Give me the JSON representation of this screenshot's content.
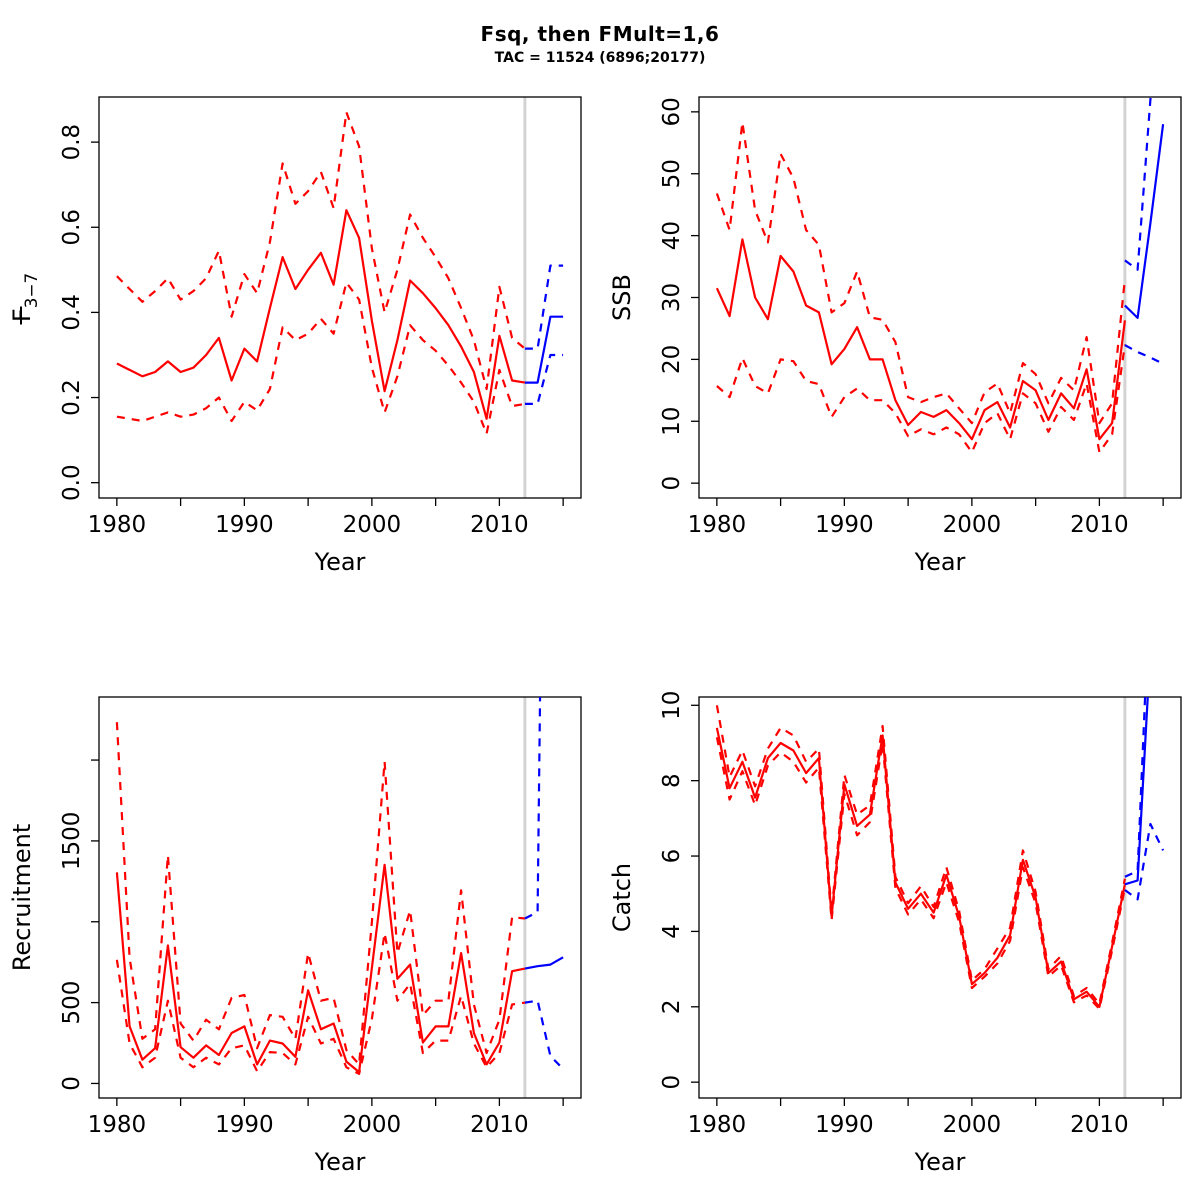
{
  "header": {
    "title": "Fsq, then FMult=1,6",
    "subtitle": "TAC = 11524 (6896;20177)"
  },
  "colors": {
    "hist": "#ff0000",
    "projection": "#0000ff",
    "divider": "#d3d3d3",
    "axis": "#000000"
  },
  "chart_data": [
    {
      "type": "line",
      "id": "fbar",
      "ylab": {
        "base": "F",
        "sub": "3−7",
        "overbar": true
      },
      "xlab": "Year",
      "usr": {
        "x": [
          1978.6,
          2016.4
        ],
        "y": [
          -0.036,
          0.906
        ]
      },
      "divider_x": 2012,
      "xticks": [
        {
          "v": 1980,
          "label": "1980"
        },
        {
          "v": 1985,
          "label": ""
        },
        {
          "v": 1990,
          "label": "1990"
        },
        {
          "v": 1995,
          "label": ""
        },
        {
          "v": 2000,
          "label": "2000"
        },
        {
          "v": 2005,
          "label": ""
        },
        {
          "v": 2010,
          "label": "2010"
        },
        {
          "v": 2015,
          "label": ""
        }
      ],
      "yticks": [
        {
          "v": 0,
          "label": "0.0"
        },
        {
          "v": 0.2,
          "label": "0.2"
        },
        {
          "v": 0.4,
          "label": "0.4"
        },
        {
          "v": 0.6,
          "label": "0.6"
        },
        {
          "v": 0.8,
          "label": "0.8"
        }
      ],
      "hist_years": [
        1980,
        1981,
        1982,
        1983,
        1984,
        1985,
        1986,
        1987,
        1988,
        1989,
        1990,
        1991,
        1992,
        1993,
        1994,
        1995,
        1996,
        1997,
        1998,
        1999,
        2000,
        2001,
        2002,
        2003,
        2004,
        2005,
        2006,
        2007,
        2008,
        2009,
        2010,
        2011,
        2012
      ],
      "median": [
        0.28,
        0.265,
        0.25,
        0.26,
        0.285,
        0.26,
        0.27,
        0.3,
        0.34,
        0.24,
        0.315,
        0.285,
        0.41,
        0.53,
        0.455,
        0.5,
        0.54,
        0.465,
        0.64,
        0.575,
        0.38,
        0.215,
        0.335,
        0.475,
        0.445,
        0.41,
        0.37,
        0.32,
        0.26,
        0.15,
        0.345,
        0.24,
        0.235
      ],
      "upper": [
        0.485,
        0.455,
        0.425,
        0.45,
        0.48,
        0.43,
        0.45,
        0.48,
        0.545,
        0.39,
        0.49,
        0.445,
        0.565,
        0.75,
        0.655,
        0.685,
        0.73,
        0.645,
        0.87,
        0.79,
        0.55,
        0.4,
        0.5,
        0.63,
        0.575,
        0.53,
        0.48,
        0.41,
        0.335,
        0.22,
        0.46,
        0.34,
        0.315
      ],
      "lower": [
        0.155,
        0.15,
        0.145,
        0.155,
        0.165,
        0.155,
        0.16,
        0.175,
        0.2,
        0.145,
        0.19,
        0.17,
        0.22,
        0.365,
        0.335,
        0.35,
        0.385,
        0.35,
        0.47,
        0.43,
        0.27,
        0.165,
        0.25,
        0.37,
        0.335,
        0.31,
        0.275,
        0.235,
        0.19,
        0.115,
        0.265,
        0.18,
        0.185
      ],
      "proj_years": [
        2012,
        2013,
        2014,
        2015
      ],
      "proj_median": [
        0.235,
        0.235,
        0.39,
        0.39
      ],
      "proj_upper": [
        0.315,
        0.315,
        0.51,
        0.51
      ],
      "proj_lower": [
        0.185,
        0.185,
        0.3,
        0.3
      ]
    },
    {
      "type": "line",
      "id": "ssb",
      "ylab": {
        "base": "SSB",
        "sub": "",
        "overbar": false
      },
      "xlab": "Year",
      "usr": {
        "x": [
          1978.6,
          2016.4
        ],
        "y": [
          -2.4,
          62.4
        ]
      },
      "divider_x": 2012,
      "xticks": [
        {
          "v": 1980,
          "label": "1980"
        },
        {
          "v": 1985,
          "label": ""
        },
        {
          "v": 1990,
          "label": "1990"
        },
        {
          "v": 1995,
          "label": ""
        },
        {
          "v": 2000,
          "label": "2000"
        },
        {
          "v": 2005,
          "label": ""
        },
        {
          "v": 2010,
          "label": "2010"
        },
        {
          "v": 2015,
          "label": ""
        }
      ],
      "yticks": [
        {
          "v": 0,
          "label": "0"
        },
        {
          "v": 10,
          "label": "10"
        },
        {
          "v": 20,
          "label": "20"
        },
        {
          "v": 30,
          "label": "30"
        },
        {
          "v": 40,
          "label": "40"
        },
        {
          "v": 50,
          "label": "50"
        },
        {
          "v": 60,
          "label": "60"
        }
      ],
      "hist_years": [
        1980,
        1981,
        1982,
        1983,
        1984,
        1985,
        1986,
        1987,
        1988,
        1989,
        1990,
        1991,
        1992,
        1993,
        1994,
        1995,
        1996,
        1997,
        1998,
        1999,
        2000,
        2001,
        2002,
        2003,
        2004,
        2005,
        2006,
        2007,
        2008,
        2009,
        2010,
        2011,
        2012
      ],
      "median": [
        31.5,
        27,
        39.4,
        30,
        26.5,
        36.7,
        34.2,
        28.7,
        27.6,
        19.2,
        21.7,
        25.2,
        20,
        20,
        13.4,
        9.4,
        11.5,
        10.7,
        11.8,
        9.7,
        7.1,
        11.8,
        13.1,
        9.0,
        16.5,
        15.0,
        10.2,
        14.5,
        12.1,
        18.4,
        7.1,
        9.7,
        26.3
      ],
      "upper": [
        46.8,
        40.9,
        58.3,
        44.1,
        38.9,
        53.2,
        49.3,
        40.9,
        38.5,
        27.6,
        29.1,
        34.2,
        26.8,
        26.4,
        22.8,
        13.9,
        13.1,
        13.9,
        14.5,
        12.1,
        9.7,
        14.7,
        16.1,
        11.3,
        19.4,
        17.6,
        12.9,
        17.0,
        15.0,
        23.6,
        9.7,
        12.9,
        33.0
      ],
      "lower": [
        15.7,
        13.9,
        20.2,
        15.7,
        14.5,
        20.0,
        19.7,
        16.5,
        16.0,
        10.7,
        13.9,
        15.3,
        13.4,
        13.4,
        11.3,
        7.6,
        8.7,
        7.9,
        9.0,
        7.9,
        5.0,
        9.7,
        11.3,
        7.1,
        14.5,
        12.9,
        8.3,
        12.3,
        10.2,
        16.1,
        5.0,
        7.9,
        22.4
      ],
      "proj_years": [
        2012,
        2013,
        2014,
        2015
      ],
      "proj_median": [
        28.7,
        26.7,
        42,
        58
      ],
      "proj_upper": [
        36,
        34.5,
        62,
        78
      ],
      "proj_lower": [
        22.3,
        21.2,
        20.3,
        19.3
      ]
    },
    {
      "type": "line",
      "id": "recruitment",
      "ylab": {
        "base": "Recruitment",
        "sub": "",
        "overbar": false
      },
      "xlab": "Year",
      "usr": {
        "x": [
          1978.6,
          2016.4
        ],
        "y": [
          -90,
          2390
        ]
      },
      "divider_x": 2012,
      "xticks": [
        {
          "v": 1980,
          "label": "1980"
        },
        {
          "v": 1985,
          "label": ""
        },
        {
          "v": 1990,
          "label": "1990"
        },
        {
          "v": 1995,
          "label": ""
        },
        {
          "v": 2000,
          "label": "2000"
        },
        {
          "v": 2005,
          "label": ""
        },
        {
          "v": 2010,
          "label": "2010"
        },
        {
          "v": 2015,
          "label": ""
        }
      ],
      "yticks": [
        {
          "v": 0,
          "label": "0"
        },
        {
          "v": 500,
          "label": "500"
        },
        {
          "v": 1000,
          "label": ""
        },
        {
          "v": 1500,
          "label": "1500"
        },
        {
          "v": 2000,
          "label": ""
        }
      ],
      "hist_years": [
        1980,
        1981,
        1982,
        1983,
        1984,
        1985,
        1986,
        1987,
        1988,
        1989,
        1990,
        1991,
        1992,
        1993,
        1994,
        1995,
        1996,
        1997,
        1998,
        1999,
        2000,
        2001,
        2002,
        2003,
        2004,
        2005,
        2006,
        2007,
        2008,
        2009,
        2010,
        2011,
        2012
      ],
      "median": [
        1305,
        353,
        147,
        218,
        853,
        224,
        159,
        235,
        176,
        312,
        353,
        118,
        265,
        247,
        165,
        576,
        335,
        371,
        135,
        70,
        715,
        1352,
        647,
        735,
        253,
        353,
        353,
        806,
        312,
        118,
        253,
        694,
        710
      ],
      "upper": [
        2234,
        776,
        276,
        335,
        1411,
        371,
        265,
        394,
        335,
        529,
        547,
        218,
        423,
        412,
        276,
        806,
        512,
        529,
        206,
        118,
        1000,
        1990,
        806,
        1070,
        423,
        512,
        512,
        1194,
        488,
        188,
        394,
        1029,
        1020
      ],
      "lower": [
        765,
        247,
        100,
        159,
        512,
        159,
        100,
        159,
        118,
        218,
        235,
        76,
        194,
        188,
        118,
        412,
        247,
        276,
        100,
        59,
        400,
        929,
        512,
        617,
        188,
        265,
        265,
        541,
        247,
        100,
        188,
        488,
        500
      ],
      "proj_years": [
        2012,
        2013,
        2014,
        2015
      ],
      "proj_median": [
        710,
        725,
        735,
        780
      ],
      "proj_upper": [
        1020,
        1060,
        8000,
        8000
      ],
      "proj_lower": [
        500,
        512,
        170,
        90
      ]
    },
    {
      "type": "line",
      "id": "catch",
      "ylab": {
        "base": "Catch",
        "sub": "",
        "overbar": false
      },
      "xlab": "Year",
      "usr": {
        "x": [
          1978.6,
          2016.4
        ],
        "y": [
          -0.42,
          10.22
        ]
      },
      "divider_x": 2012,
      "xticks": [
        {
          "v": 1980,
          "label": "1980"
        },
        {
          "v": 1985,
          "label": ""
        },
        {
          "v": 1990,
          "label": "1990"
        },
        {
          "v": 1995,
          "label": ""
        },
        {
          "v": 2000,
          "label": "2000"
        },
        {
          "v": 2005,
          "label": ""
        },
        {
          "v": 2010,
          "label": "2010"
        },
        {
          "v": 2015,
          "label": ""
        }
      ],
      "yticks": [
        {
          "v": 0,
          "label": "0"
        },
        {
          "v": 2,
          "label": "2"
        },
        {
          "v": 4,
          "label": "4"
        },
        {
          "v": 6,
          "label": "6"
        },
        {
          "v": 8,
          "label": "8"
        },
        {
          "v": 10,
          "label": "10"
        }
      ],
      "hist_years": [
        1980,
        1981,
        1982,
        1983,
        1984,
        1985,
        1986,
        1987,
        1988,
        1989,
        1990,
        1991,
        1992,
        1993,
        1994,
        1995,
        1996,
        1997,
        1998,
        1999,
        2000,
        2001,
        2002,
        2003,
        2004,
        2005,
        2006,
        2007,
        2008,
        2009,
        2010,
        2011,
        2012
      ],
      "median": [
        9.4,
        7.8,
        8.5,
        7.55,
        8.6,
        9.0,
        8.8,
        8.2,
        8.6,
        4.4,
        7.9,
        6.8,
        7.1,
        9.2,
        5.3,
        4.6,
        5.0,
        4.5,
        5.5,
        4.4,
        2.6,
        2.9,
        3.3,
        3.9,
        5.9,
        4.9,
        2.9,
        3.2,
        2.2,
        2.4,
        2.0,
        3.6,
        5.25
      ],
      "upper": [
        10.0,
        8.1,
        8.8,
        7.85,
        8.85,
        9.4,
        9.2,
        8.5,
        8.85,
        4.5,
        8.15,
        7.1,
        7.35,
        9.45,
        5.45,
        4.75,
        5.2,
        4.65,
        5.7,
        4.55,
        2.7,
        3.0,
        3.55,
        4.1,
        6.15,
        5.05,
        3.0,
        3.35,
        2.28,
        2.5,
        2.08,
        3.7,
        5.4
      ],
      "lower": [
        9.15,
        7.5,
        8.25,
        7.35,
        8.4,
        8.75,
        8.5,
        7.95,
        8.35,
        4.3,
        7.65,
        6.55,
        6.9,
        9.0,
        5.15,
        4.45,
        4.85,
        4.35,
        5.3,
        4.25,
        2.5,
        2.8,
        3.15,
        3.75,
        5.7,
        4.75,
        2.8,
        3.1,
        2.12,
        2.3,
        1.95,
        3.5,
        5.15
      ],
      "proj_years": [
        2012,
        2013,
        2014,
        2015
      ],
      "proj_median": [
        5.25,
        5.35,
        11.5,
        12
      ],
      "proj_upper": [
        5.45,
        5.6,
        13.5,
        14
      ],
      "proj_lower": [
        5.1,
        4.85,
        6.85,
        6.15
      ]
    }
  ]
}
